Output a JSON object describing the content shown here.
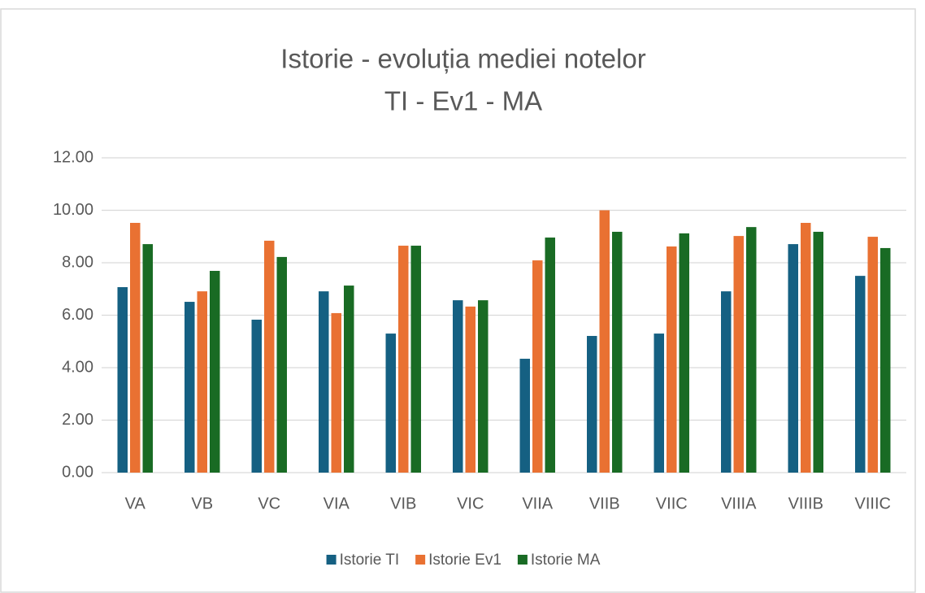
{
  "chart_data": {
    "type": "bar",
    "title": "Istorie - evoluția mediei notelor",
    "subtitle": "TI - Ev1 - MA",
    "categories": [
      "VA",
      "VB",
      "VC",
      "VIA",
      "VIB",
      "VIC",
      "VIIA",
      "VIIB",
      "VIIC",
      "VIIIA",
      "VIIIB",
      "VIIIC"
    ],
    "series": [
      {
        "name": "Istorie TI",
        "color": "#156082",
        "values": [
          7.07,
          6.51,
          5.83,
          6.91,
          5.3,
          6.57,
          4.34,
          5.21,
          5.3,
          6.91,
          8.71,
          7.5
        ]
      },
      {
        "name": "Istorie Ev1",
        "color": "#e97132",
        "values": [
          9.52,
          6.91,
          8.84,
          6.08,
          8.65,
          6.33,
          8.09,
          10.0,
          8.62,
          9.02,
          9.52,
          8.99
        ]
      },
      {
        "name": "Istorie MA",
        "color": "#196b24",
        "values": [
          8.71,
          7.69,
          8.22,
          7.13,
          8.65,
          6.57,
          8.96,
          9.18,
          9.12,
          9.36,
          9.18,
          8.56
        ]
      }
    ],
    "ylim": [
      0,
      12
    ],
    "yticks": [
      {
        "value": 0,
        "label": "0.00"
      },
      {
        "value": 2,
        "label": "2.00"
      },
      {
        "value": 4,
        "label": "4.00"
      },
      {
        "value": 6,
        "label": "6.00"
      },
      {
        "value": 8,
        "label": "8.00"
      },
      {
        "value": 10,
        "label": "10.00"
      },
      {
        "value": 12,
        "label": "12.00"
      }
    ],
    "grid": true,
    "legend": "bottom"
  }
}
